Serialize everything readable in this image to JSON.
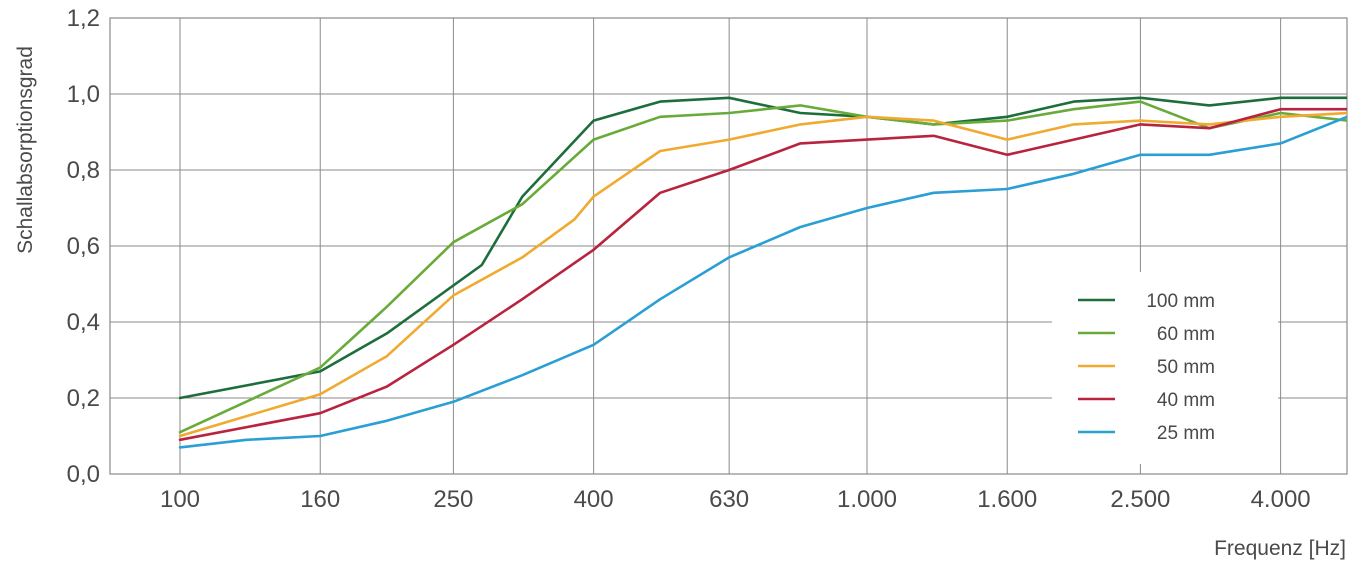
{
  "chart_data": {
    "type": "line",
    "title": "",
    "xlabel": "Frequenz [Hz]",
    "ylabel": "Schallabsorptionsgrad",
    "x_scale": "log",
    "x_ticks": [
      100,
      160,
      250,
      400,
      630,
      1000,
      1600,
      2500,
      4000
    ],
    "x_tick_labels": [
      "100",
      "160",
      "250",
      "400",
      "630",
      "1.000",
      "1.600",
      "2.500",
      "4.000"
    ],
    "xlim": [
      80,
      5000
    ],
    "y_ticks": [
      0,
      0.2,
      0.4,
      0.6,
      0.8,
      1.0,
      1.2
    ],
    "y_tick_labels": [
      "0,0",
      "0,2",
      "0,4",
      "0,6",
      "0,8",
      "1,0",
      "1,2"
    ],
    "ylim": [
      0,
      1.2
    ],
    "grid": true,
    "legend_position": "bottom-right",
    "series": [
      {
        "name": "100 mm",
        "color": "#1e6e3c",
        "points": [
          [
            100,
            0.2
          ],
          [
            160,
            0.27
          ],
          [
            200,
            0.37
          ],
          [
            275,
            0.55
          ],
          [
            315,
            0.73
          ],
          [
            400,
            0.93
          ],
          [
            500,
            0.98
          ],
          [
            630,
            0.99
          ],
          [
            800,
            0.95
          ],
          [
            1000,
            0.94
          ],
          [
            1250,
            0.92
          ],
          [
            1600,
            0.94
          ],
          [
            2000,
            0.98
          ],
          [
            2500,
            0.99
          ],
          [
            3150,
            0.97
          ],
          [
            4000,
            0.99
          ],
          [
            5000,
            0.99
          ]
        ]
      },
      {
        "name": "60 mm",
        "color": "#69ab3a",
        "points": [
          [
            100,
            0.11
          ],
          [
            160,
            0.28
          ],
          [
            200,
            0.44
          ],
          [
            250,
            0.61
          ],
          [
            315,
            0.71
          ],
          [
            400,
            0.88
          ],
          [
            500,
            0.94
          ],
          [
            630,
            0.95
          ],
          [
            800,
            0.97
          ],
          [
            1000,
            0.94
          ],
          [
            1250,
            0.92
          ],
          [
            1600,
            0.93
          ],
          [
            2000,
            0.96
          ],
          [
            2500,
            0.98
          ],
          [
            3150,
            0.91
          ],
          [
            4000,
            0.95
          ],
          [
            5000,
            0.93
          ]
        ]
      },
      {
        "name": "50 mm",
        "color": "#f0aa30",
        "points": [
          [
            100,
            0.1
          ],
          [
            160,
            0.21
          ],
          [
            200,
            0.31
          ],
          [
            250,
            0.47
          ],
          [
            315,
            0.57
          ],
          [
            375,
            0.67
          ],
          [
            400,
            0.73
          ],
          [
            500,
            0.85
          ],
          [
            630,
            0.88
          ],
          [
            800,
            0.92
          ],
          [
            1000,
            0.94
          ],
          [
            1250,
            0.93
          ],
          [
            1600,
            0.88
          ],
          [
            2000,
            0.92
          ],
          [
            2500,
            0.93
          ],
          [
            3150,
            0.92
          ],
          [
            4000,
            0.94
          ],
          [
            5000,
            0.95
          ]
        ]
      },
      {
        "name": "40 mm",
        "color": "#b8233e",
        "points": [
          [
            100,
            0.09
          ],
          [
            160,
            0.16
          ],
          [
            200,
            0.23
          ],
          [
            250,
            0.34
          ],
          [
            315,
            0.46
          ],
          [
            400,
            0.59
          ],
          [
            500,
            0.74
          ],
          [
            630,
            0.8
          ],
          [
            800,
            0.87
          ],
          [
            1000,
            0.88
          ],
          [
            1250,
            0.89
          ],
          [
            1600,
            0.84
          ],
          [
            2000,
            0.88
          ],
          [
            2500,
            0.92
          ],
          [
            3150,
            0.91
          ],
          [
            4000,
            0.96
          ],
          [
            5000,
            0.96
          ]
        ]
      },
      {
        "name": "25 mm",
        "color": "#2a9fd4",
        "points": [
          [
            100,
            0.07
          ],
          [
            125,
            0.09
          ],
          [
            160,
            0.1
          ],
          [
            200,
            0.14
          ],
          [
            250,
            0.19
          ],
          [
            315,
            0.26
          ],
          [
            400,
            0.34
          ],
          [
            500,
            0.46
          ],
          [
            630,
            0.57
          ],
          [
            800,
            0.65
          ],
          [
            1000,
            0.7
          ],
          [
            1250,
            0.74
          ],
          [
            1600,
            0.75
          ],
          [
            2000,
            0.79
          ],
          [
            2500,
            0.84
          ],
          [
            3150,
            0.84
          ],
          [
            4000,
            0.87
          ],
          [
            5000,
            0.94
          ]
        ]
      }
    ]
  }
}
